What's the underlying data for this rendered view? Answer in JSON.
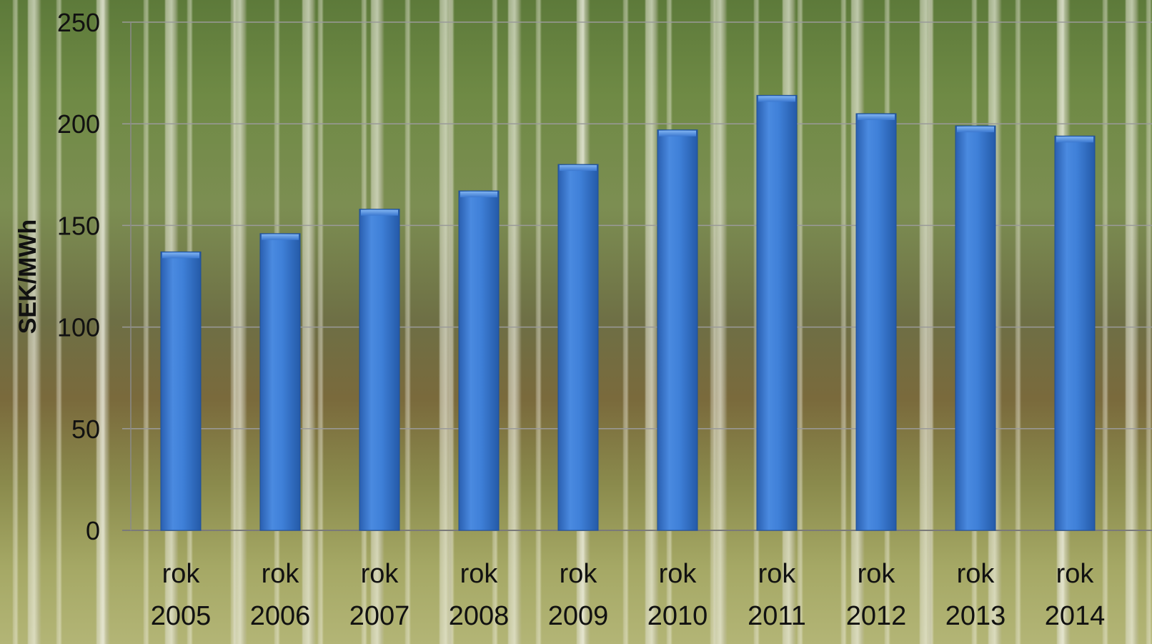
{
  "chart_data": {
    "type": "bar",
    "title": "",
    "xlabel": "",
    "ylabel": "SEK/MWh",
    "ylim": [
      0,
      250
    ],
    "yticks": [
      0,
      50,
      100,
      150,
      200,
      250
    ],
    "grid": true,
    "legend": "none",
    "bar_color": "#3b78d0",
    "categories": [
      [
        "rok",
        "2005"
      ],
      [
        "rok",
        "2006"
      ],
      [
        "rok",
        "2007"
      ],
      [
        "rok",
        "2008"
      ],
      [
        "rok",
        "2009"
      ],
      [
        "rok",
        "2010"
      ],
      [
        "rok",
        "2011"
      ],
      [
        "rok",
        "2012"
      ],
      [
        "rok",
        "2013"
      ],
      [
        "rok",
        "2014"
      ]
    ],
    "values": [
      137,
      146,
      158,
      167,
      180,
      197,
      214,
      205,
      199,
      194
    ]
  }
}
